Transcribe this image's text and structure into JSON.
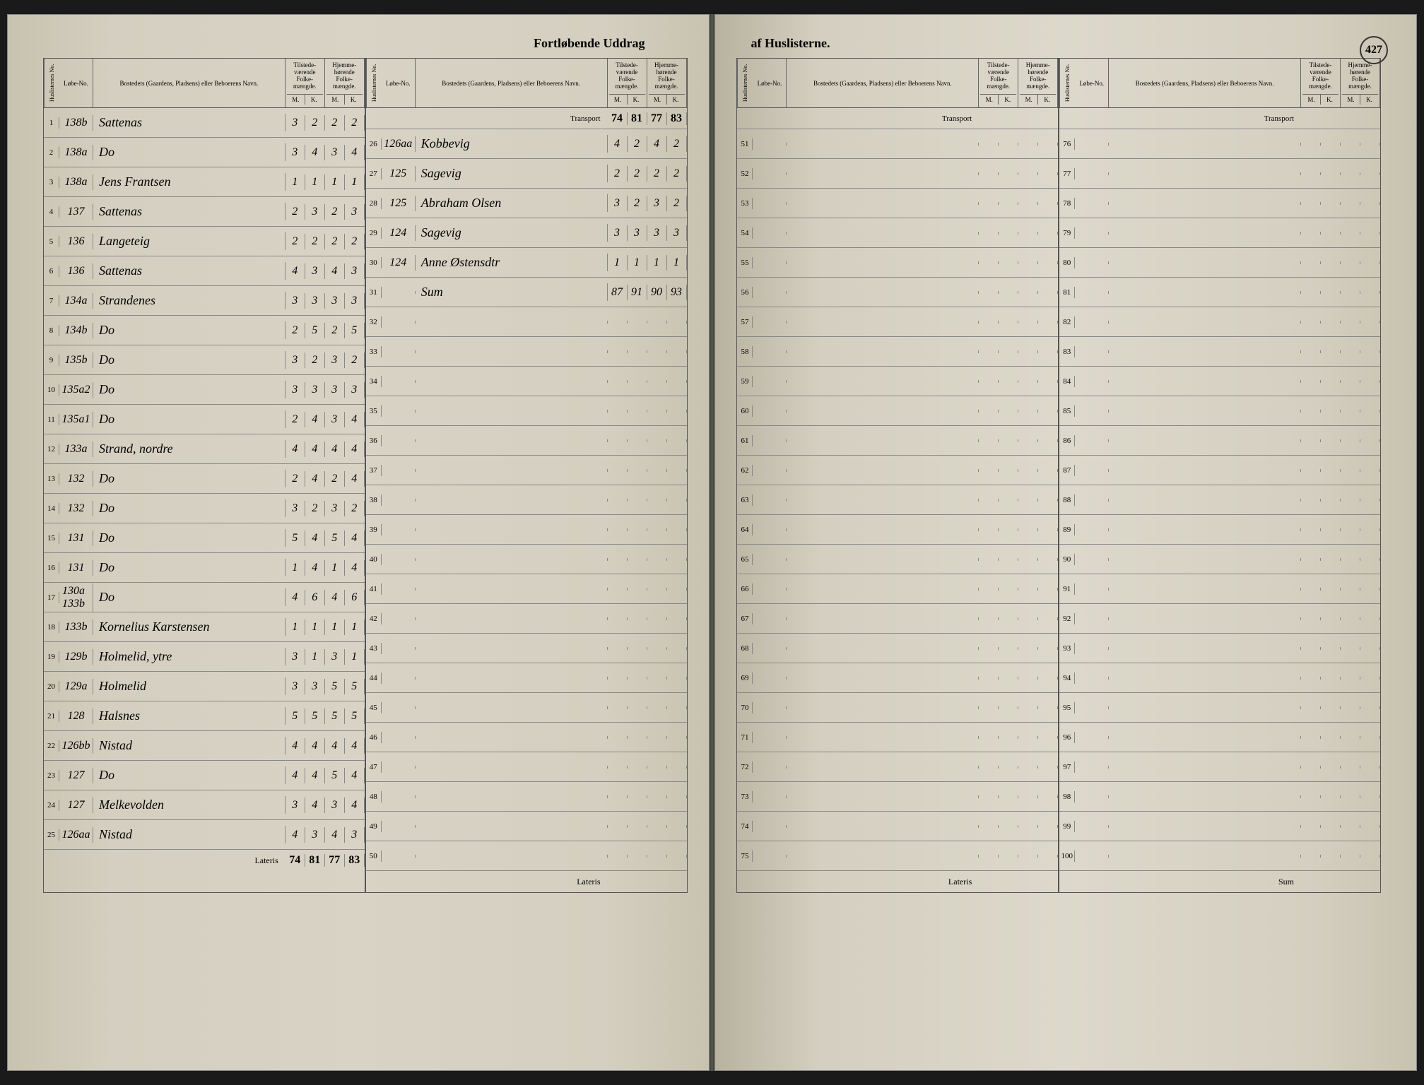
{
  "title_left": "Fortløbende Uddrag",
  "title_right": "af Huslisterne.",
  "page_number": "427",
  "headers": {
    "huslisternes": "Huslisternes No.",
    "lobe": "Løbe-No.",
    "bosted": "Bostedets (Gaardens, Pladsens) eller Beboerens Navn.",
    "tilstede": "Tilstede-værende Folke-mængde.",
    "hjemme": "Hjemme-hørende Folke-mængde.",
    "m": "M.",
    "k": "K."
  },
  "transport_label": "Transport",
  "lateris_label": "Lateris",
  "sum_label": "Sum",
  "left_col1_transport": {
    "m1": "",
    "k1": "",
    "m2": "",
    "k2": ""
  },
  "left_col1": [
    {
      "seq": "1",
      "lobe": "138b",
      "name": "Sattenas",
      "m1": "3",
      "k1": "2",
      "m2": "2",
      "k2": "2"
    },
    {
      "seq": "2",
      "lobe": "138a",
      "name": "Do",
      "m1": "3",
      "k1": "4",
      "m2": "3",
      "k2": "4"
    },
    {
      "seq": "3",
      "lobe": "138a",
      "name": "Jens Frantsen",
      "m1": "1",
      "k1": "1",
      "m2": "1",
      "k2": "1"
    },
    {
      "seq": "4",
      "lobe": "137",
      "name": "Sattenas",
      "m1": "2",
      "k1": "3",
      "m2": "2",
      "k2": "3"
    },
    {
      "seq": "5",
      "lobe": "136",
      "name": "Langeteig",
      "m1": "2",
      "k1": "2",
      "m2": "2",
      "k2": "2"
    },
    {
      "seq": "6",
      "lobe": "136",
      "name": "Sattenas",
      "m1": "4",
      "k1": "3",
      "m2": "4",
      "k2": "3"
    },
    {
      "seq": "7",
      "lobe": "134a",
      "name": "Strandenes",
      "m1": "3",
      "k1": "3",
      "m2": "3",
      "k2": "3"
    },
    {
      "seq": "8",
      "lobe": "134b",
      "name": "Do",
      "m1": "2",
      "k1": "5",
      "m2": "2",
      "k2": "5"
    },
    {
      "seq": "9",
      "lobe": "135b",
      "name": "Do",
      "m1": "3",
      "k1": "2",
      "m2": "3",
      "k2": "2"
    },
    {
      "seq": "10",
      "lobe": "135a2",
      "name": "Do",
      "m1": "3",
      "k1": "3",
      "m2": "3",
      "k2": "3"
    },
    {
      "seq": "11",
      "lobe": "135a1",
      "name": "Do",
      "m1": "2",
      "k1": "4",
      "m2": "3",
      "k2": "4"
    },
    {
      "seq": "12",
      "lobe": "133a",
      "name": "Strand, nordre",
      "m1": "4",
      "k1": "4",
      "m2": "4",
      "k2": "4"
    },
    {
      "seq": "13",
      "lobe": "132",
      "name": "Do",
      "m1": "2",
      "k1": "4",
      "m2": "2",
      "k2": "4"
    },
    {
      "seq": "14",
      "lobe": "132",
      "name": "Do",
      "m1": "3",
      "k1": "2",
      "m2": "3",
      "k2": "2"
    },
    {
      "seq": "15",
      "lobe": "131",
      "name": "Do",
      "m1": "5",
      "k1": "4",
      "m2": "5",
      "k2": "4"
    },
    {
      "seq": "16",
      "lobe": "131",
      "name": "Do",
      "m1": "1",
      "k1": "4",
      "m2": "1",
      "k2": "4"
    },
    {
      "seq": "17",
      "lobe": "130a 133b",
      "name": "Do",
      "m1": "4",
      "k1": "6",
      "m2": "4",
      "k2": "6"
    },
    {
      "seq": "18",
      "lobe": "133b",
      "name": "Kornelius Karstensen",
      "m1": "1",
      "k1": "1",
      "m2": "1",
      "k2": "1"
    },
    {
      "seq": "19",
      "lobe": "129b",
      "name": "Holmelid, ytre",
      "m1": "3",
      "k1": "1",
      "m2": "3",
      "k2": "1"
    },
    {
      "seq": "20",
      "lobe": "129a",
      "name": "Holmelid",
      "m1": "3",
      "k1": "3",
      "m2": "5",
      "k2": "5"
    },
    {
      "seq": "21",
      "lobe": "128",
      "name": "Halsnes",
      "m1": "5",
      "k1": "5",
      "m2": "5",
      "k2": "5"
    },
    {
      "seq": "22",
      "lobe": "126bb",
      "name": "Nistad",
      "m1": "4",
      "k1": "4",
      "m2": "4",
      "k2": "4"
    },
    {
      "seq": "23",
      "lobe": "127",
      "name": "Do",
      "m1": "4",
      "k1": "4",
      "m2": "5",
      "k2": "4"
    },
    {
      "seq": "24",
      "lobe": "127",
      "name": "Melkevolden",
      "m1": "3",
      "k1": "4",
      "m2": "3",
      "k2": "4"
    },
    {
      "seq": "25",
      "lobe": "126aa",
      "name": "Nistad",
      "m1": "4",
      "k1": "3",
      "m2": "4",
      "k2": "3"
    }
  ],
  "left_col1_lateris": {
    "m1": "74",
    "k1": "81",
    "m2": "77",
    "k2": "83"
  },
  "left_col2_transport": {
    "m1": "74",
    "k1": "81",
    "m2": "77",
    "k2": "83"
  },
  "left_col2": [
    {
      "seq": "26",
      "lobe": "126aa",
      "name": "Kobbevig",
      "m1": "4",
      "k1": "2",
      "m2": "4",
      "k2": "2"
    },
    {
      "seq": "27",
      "lobe": "125",
      "name": "Sagevig",
      "m1": "2",
      "k1": "2",
      "m2": "2",
      "k2": "2"
    },
    {
      "seq": "28",
      "lobe": "125",
      "name": "Abraham Olsen",
      "m1": "3",
      "k1": "2",
      "m2": "3",
      "k2": "2"
    },
    {
      "seq": "29",
      "lobe": "124",
      "name": "Sagevig",
      "m1": "3",
      "k1": "3",
      "m2": "3",
      "k2": "3"
    },
    {
      "seq": "30",
      "lobe": "124",
      "name": "Anne Østensdtr",
      "m1": "1",
      "k1": "1",
      "m2": "1",
      "k2": "1"
    },
    {
      "seq": "31",
      "lobe": "",
      "name": "Sum",
      "m1": "87",
      "k1": "91",
      "m2": "90",
      "k2": "93"
    },
    {
      "seq": "32"
    },
    {
      "seq": "33"
    },
    {
      "seq": "34"
    },
    {
      "seq": "35"
    },
    {
      "seq": "36"
    },
    {
      "seq": "37"
    },
    {
      "seq": "38"
    },
    {
      "seq": "39"
    },
    {
      "seq": "40"
    },
    {
      "seq": "41"
    },
    {
      "seq": "42"
    },
    {
      "seq": "43"
    },
    {
      "seq": "44"
    },
    {
      "seq": "45"
    },
    {
      "seq": "46"
    },
    {
      "seq": "47"
    },
    {
      "seq": "48"
    },
    {
      "seq": "49"
    },
    {
      "seq": "50"
    }
  ],
  "right_col1_seq": [
    "51",
    "52",
    "53",
    "54",
    "55",
    "56",
    "57",
    "58",
    "59",
    "60",
    "61",
    "62",
    "63",
    "64",
    "65",
    "66",
    "67",
    "68",
    "69",
    "70",
    "71",
    "72",
    "73",
    "74",
    "75"
  ],
  "right_col2_seq": [
    "76",
    "77",
    "78",
    "79",
    "80",
    "81",
    "82",
    "83",
    "84",
    "85",
    "86",
    "87",
    "88",
    "89",
    "90",
    "91",
    "92",
    "93",
    "94",
    "95",
    "96",
    "97",
    "98",
    "99",
    "100"
  ],
  "colors": {
    "paper": "#d4cfc0",
    "ink": "#2a2a28",
    "line": "#666"
  }
}
